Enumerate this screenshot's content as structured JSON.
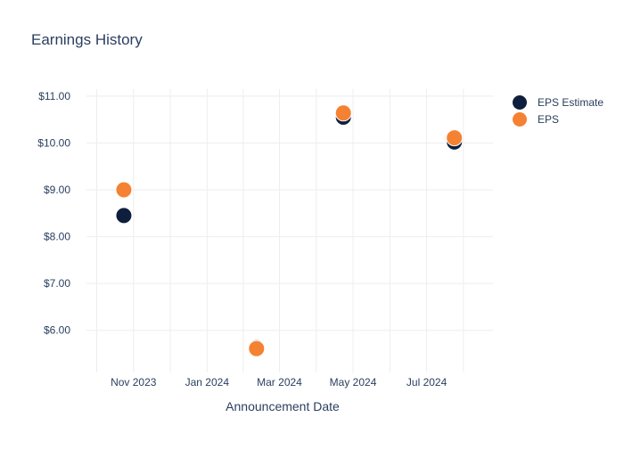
{
  "chart_data": {
    "type": "scatter",
    "title": "Earnings History",
    "xlabel": "Announcement Date",
    "ylabel": "",
    "x_ticks": [
      "Nov 2023",
      "Jan 2024",
      "Mar 2024",
      "May 2024",
      "Jul 2024"
    ],
    "x_tick_dates": [
      "2023-11-01",
      "2024-01-01",
      "2024-03-01",
      "2024-05-01",
      "2024-07-01"
    ],
    "xlim": [
      "2023-09-23",
      "2024-08-25"
    ],
    "y_ticks": [
      "$6.00",
      "$7.00",
      "$8.00",
      "$9.00",
      "$10.00",
      "$11.00"
    ],
    "y_tick_values": [
      6,
      7,
      8,
      9,
      10,
      11
    ],
    "ylim": [
      5.1,
      11.15
    ],
    "grid": true,
    "legend_position": "top-right",
    "series": [
      {
        "name": "EPS Estimate",
        "color": "#0d1f3c",
        "points": [
          {
            "x": "2023-10-24",
            "y": 8.45
          },
          {
            "x": "2024-02-11",
            "y": 5.63
          },
          {
            "x": "2024-04-23",
            "y": 10.55
          },
          {
            "x": "2024-07-24",
            "y": 10.02
          }
        ]
      },
      {
        "name": "EPS",
        "color": "#f58232",
        "points": [
          {
            "x": "2023-10-24",
            "y": 9.0
          },
          {
            "x": "2024-02-11",
            "y": 5.61
          },
          {
            "x": "2024-04-23",
            "y": 10.64
          },
          {
            "x": "2024-07-24",
            "y": 10.11
          }
        ]
      }
    ]
  }
}
